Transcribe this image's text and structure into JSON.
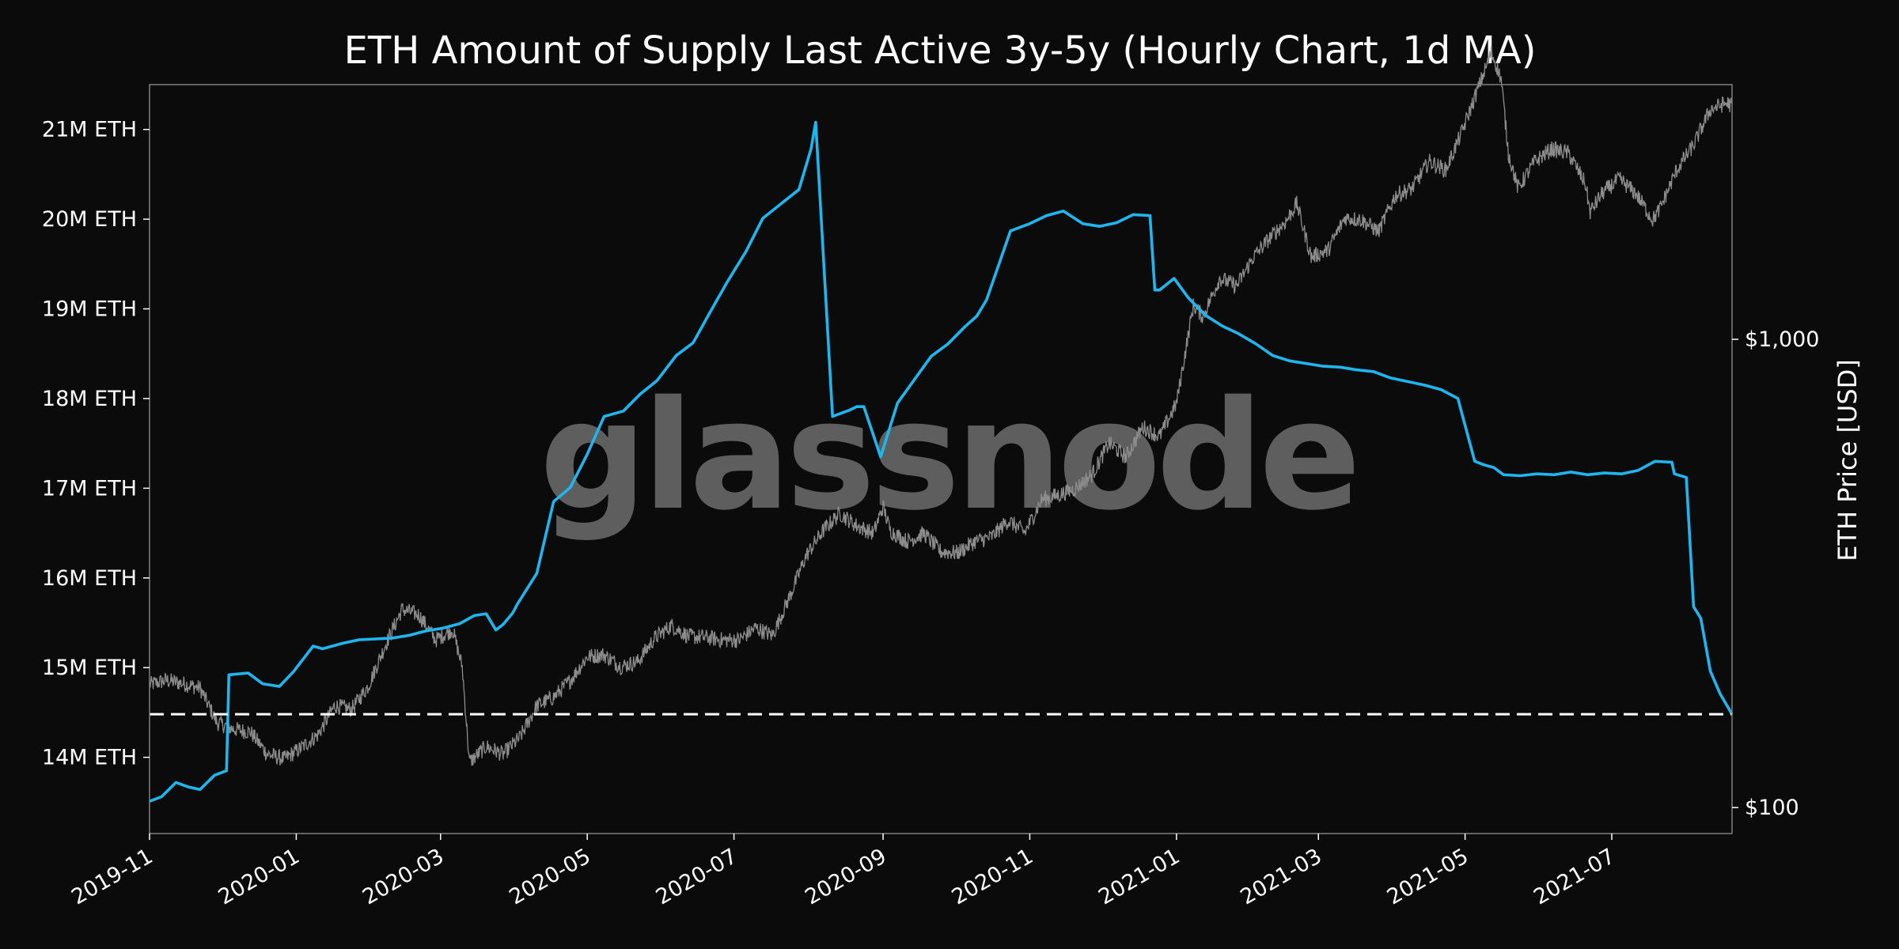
{
  "chart_data": {
    "type": "line",
    "title": "ETH Amount of Supply Last Active 3y-5y (Hourly Chart, 1d MA)",
    "watermark": "glassnode",
    "xlabel": "",
    "ylabel": "",
    "y2label": "ETH Price [USD]",
    "x_tick_labels": [
      "2019-11",
      "2020-01",
      "2020-03",
      "2020-05",
      "2020-07",
      "2020-09",
      "2020-11",
      "2021-01",
      "2021-03",
      "2021-05",
      "2021-07"
    ],
    "x_ticks": [
      "2019-11-01",
      "2020-01-01",
      "2020-03-01",
      "2020-05-01",
      "2020-07-01",
      "2020-09-01",
      "2020-11-01",
      "2021-01-01",
      "2021-03-01",
      "2021-05-01",
      "2021-07-01"
    ],
    "xlim": [
      "2019-11-01",
      "2021-08-20"
    ],
    "y_tick_labels": [
      "14M ETH",
      "15M ETH",
      "16M ETH",
      "17M ETH",
      "18M ETH",
      "19M ETH",
      "20M ETH",
      "21M ETH"
    ],
    "y_ticks": [
      14000000,
      15000000,
      16000000,
      17000000,
      18000000,
      19000000,
      20000000,
      21000000
    ],
    "ylim": [
      13150000,
      21500000
    ],
    "y2_tick_labels": [
      "$100",
      "$1,000"
    ],
    "y2_ticks": [
      100,
      1000
    ],
    "y2lim": [
      88,
      3500
    ],
    "y2_scale": "log",
    "grid": false,
    "colors": {
      "supply": "#1fb6ef",
      "price": "#8c8c8c",
      "reference": "#ffffff",
      "background": "#0b0b0b",
      "axes_border": "#808080"
    },
    "reference_line": {
      "y": 14480000,
      "style": "dashed"
    },
    "series": [
      {
        "axis": "left",
        "x": [
          "2019-11-01",
          "2019-11-06",
          "2019-11-12",
          "2019-11-17",
          "2019-11-22",
          "2019-11-28",
          "2019-12-03",
          "2019-12-04",
          "2019-12-12",
          "2019-12-18",
          "2019-12-25",
          "2019-12-31",
          "2020-01-08",
          "2020-01-12",
          "2020-01-20",
          "2020-01-27",
          "2020-02-03",
          "2020-02-10",
          "2020-02-17",
          "2020-02-24",
          "2020-03-02",
          "2020-03-09",
          "2020-03-15",
          "2020-03-20",
          "2020-03-24",
          "2020-03-27",
          "2020-03-31",
          "2020-04-02",
          "2020-04-10",
          "2020-04-17",
          "2020-04-24",
          "2020-05-01",
          "2020-05-08",
          "2020-05-16",
          "2020-05-23",
          "2020-05-30",
          "2020-06-07",
          "2020-06-14",
          "2020-06-21",
          "2020-06-28",
          "2020-07-06",
          "2020-07-13",
          "2020-07-20",
          "2020-07-28",
          "2020-08-02",
          "2020-08-04",
          "2020-08-11",
          "2020-08-18",
          "2020-08-21",
          "2020-08-24",
          "2020-08-31",
          "2020-09-07",
          "2020-09-14",
          "2020-09-21",
          "2020-09-28",
          "2020-10-05",
          "2020-10-10",
          "2020-10-14",
          "2020-10-24",
          "2020-11-01",
          "2020-11-08",
          "2020-11-15",
          "2020-11-23",
          "2020-11-30",
          "2020-12-07",
          "2020-12-14",
          "2020-12-21",
          "2020-12-23",
          "2020-12-25",
          "2020-12-31",
          "2021-01-06",
          "2021-01-13",
          "2021-01-20",
          "2021-01-27",
          "2021-02-03",
          "2021-02-10",
          "2021-02-17",
          "2021-02-24",
          "2021-03-03",
          "2021-03-10",
          "2021-03-17",
          "2021-03-24",
          "2021-03-31",
          "2021-04-07",
          "2021-04-14",
          "2021-04-21",
          "2021-04-28",
          "2021-05-05",
          "2021-05-09",
          "2021-05-13",
          "2021-05-17",
          "2021-05-24",
          "2021-05-31",
          "2021-06-07",
          "2021-06-14",
          "2021-06-21",
          "2021-06-28",
          "2021-07-05",
          "2021-07-12",
          "2021-07-19",
          "2021-07-26",
          "2021-07-27",
          "2021-08-01",
          "2021-08-04",
          "2021-08-07",
          "2021-08-11",
          "2021-08-15",
          "2021-08-20"
        ],
        "values": [
          13510000,
          13560000,
          13720000,
          13670000,
          13640000,
          13800000,
          13850000,
          14920000,
          14940000,
          14820000,
          14790000,
          14960000,
          15240000,
          15210000,
          15270000,
          15310000,
          15320000,
          15330000,
          15360000,
          15410000,
          15440000,
          15490000,
          15580000,
          15600000,
          15420000,
          15480000,
          15610000,
          15710000,
          16050000,
          16850000,
          17010000,
          17380000,
          17800000,
          17860000,
          18050000,
          18200000,
          18480000,
          18620000,
          18960000,
          19290000,
          19640000,
          20010000,
          20160000,
          20330000,
          20780000,
          21080000,
          17800000,
          17870000,
          17910000,
          17910000,
          17350000,
          17950000,
          18210000,
          18470000,
          18610000,
          18800000,
          18920000,
          19100000,
          19870000,
          19950000,
          20040000,
          20090000,
          19950000,
          19920000,
          19960000,
          20050000,
          20040000,
          19210000,
          19210000,
          19340000,
          19120000,
          18930000,
          18810000,
          18720000,
          18610000,
          18480000,
          18420000,
          18390000,
          18360000,
          18350000,
          18320000,
          18300000,
          18230000,
          18190000,
          18150000,
          18100000,
          18000000,
          17300000,
          17260000,
          17230000,
          17150000,
          17140000,
          17160000,
          17150000,
          17180000,
          17150000,
          17170000,
          17160000,
          17200000,
          17300000,
          17290000,
          17160000,
          17120000,
          15680000,
          15550000,
          14960000,
          14710000,
          14480000
        ]
      },
      {
        "axis": "right",
        "x": [
          "2019-11-01",
          "2019-11-08",
          "2019-11-15",
          "2019-11-22",
          "2019-11-29",
          "2019-12-06",
          "2019-12-13",
          "2019-12-20",
          "2019-12-27",
          "2020-01-03",
          "2020-01-10",
          "2020-01-17",
          "2020-01-24",
          "2020-01-31",
          "2020-02-07",
          "2020-02-14",
          "2020-02-21",
          "2020-02-28",
          "2020-03-06",
          "2020-03-10",
          "2020-03-13",
          "2020-03-20",
          "2020-03-27",
          "2020-04-03",
          "2020-04-10",
          "2020-04-17",
          "2020-04-24",
          "2020-05-01",
          "2020-05-08",
          "2020-05-15",
          "2020-05-22",
          "2020-05-29",
          "2020-06-05",
          "2020-06-12",
          "2020-06-19",
          "2020-06-26",
          "2020-07-03",
          "2020-07-10",
          "2020-07-17",
          "2020-07-24",
          "2020-07-31",
          "2020-08-07",
          "2020-08-14",
          "2020-08-21",
          "2020-08-28",
          "2020-09-01",
          "2020-09-04",
          "2020-09-11",
          "2020-09-18",
          "2020-09-25",
          "2020-10-02",
          "2020-10-09",
          "2020-10-16",
          "2020-10-23",
          "2020-10-30",
          "2020-11-06",
          "2020-11-13",
          "2020-11-20",
          "2020-11-27",
          "2020-12-04",
          "2020-12-11",
          "2020-12-18",
          "2020-12-25",
          "2021-01-01",
          "2021-01-08",
          "2021-01-12",
          "2021-01-19",
          "2021-01-26",
          "2021-02-02",
          "2021-02-09",
          "2021-02-16",
          "2021-02-20",
          "2021-02-26",
          "2021-03-05",
          "2021-03-12",
          "2021-03-19",
          "2021-03-26",
          "2021-04-02",
          "2021-04-09",
          "2021-04-16",
          "2021-04-23",
          "2021-04-30",
          "2021-05-07",
          "2021-05-12",
          "2021-05-16",
          "2021-05-19",
          "2021-05-23",
          "2021-05-30",
          "2021-06-06",
          "2021-06-13",
          "2021-06-20",
          "2021-06-22",
          "2021-06-27",
          "2021-07-04",
          "2021-07-11",
          "2021-07-18",
          "2021-07-21",
          "2021-07-28",
          "2021-08-04",
          "2021-08-11",
          "2021-08-18",
          "2021-08-20"
        ],
        "values": [
          183,
          187,
          184,
          180,
          152,
          147,
          145,
          130,
          127,
          134,
          143,
          165,
          162,
          182,
          222,
          265,
          258,
          228,
          240,
          200,
          125,
          135,
          130,
          141,
          165,
          172,
          187,
          210,
          212,
          200,
          205,
          230,
          245,
          232,
          231,
          228,
          228,
          242,
          233,
          281,
          345,
          390,
          425,
          400,
          385,
          440,
          390,
          370,
          385,
          352,
          350,
          370,
          378,
          410,
          387,
          455,
          465,
          480,
          515,
          600,
          560,
          650,
          620,
          730,
          1180,
          1120,
          1350,
          1300,
          1500,
          1650,
          1800,
          1950,
          1500,
          1550,
          1820,
          1800,
          1700,
          2030,
          2100,
          2400,
          2300,
          2800,
          3500,
          4100,
          3600,
          2500,
          2100,
          2400,
          2550,
          2500,
          2150,
          1870,
          2050,
          2200,
          2050,
          1800,
          1900,
          2300,
          2600,
          3100,
          3200,
          3150
        ]
      }
    ]
  }
}
